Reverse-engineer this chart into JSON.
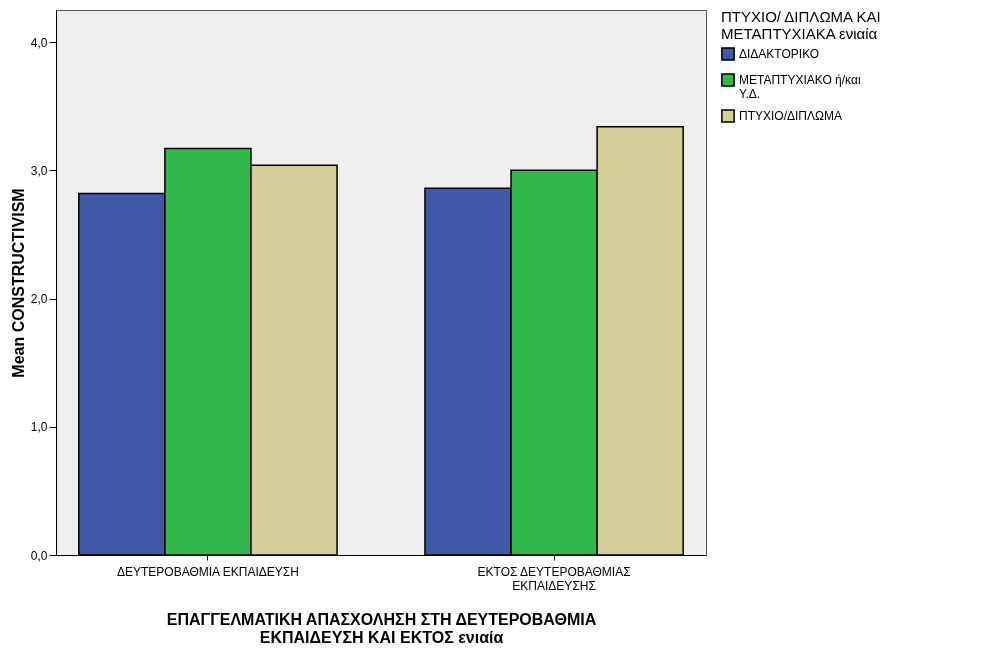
{
  "chart_data": {
    "type": "bar",
    "xlabel": "ΕΠΑΓΓΕΛΜΑΤΙΚΗ ΑΠΑΣΧΟΛΗΣΗ ΣΤΗ ΔΕΥΤΕΡΟΒΑΘΜΙΑ ΕΚΠΑΙΔΕΥΣΗ ΚΑΙ ΕΚΤΟΣ ενιαία",
    "ylabel": "Mean CONSTRUCTIVISM",
    "legend_title": "ΠΤΥΧΙΟ/ ΔΙΠΛΩΜΑ ΚΑΙ ΜΕΤΑΠΤΥΧΙΑΚΑ ενιαία",
    "categories": [
      "ΔΕΥΤΕΡΟΒΑΘΜΙΑ ΕΚΠΑΙΔΕΥΣΗ",
      "ΕΚΤΟΣ ΔΕΥΤΕΡΟΒΑΘΜΙΑΣ ΕΚΠΑΙΔΕΥΣΗΣ"
    ],
    "series": [
      {
        "name": "ΔΙΔΑΚΤΟΡΙΚΟ",
        "color": "#3f58a8",
        "values": [
          2.82,
          2.86
        ]
      },
      {
        "name": "ΜΕΤΑΠΤΥΧΙΑΚΟ ή/και Υ.Δ.",
        "color": "#30b84a",
        "values": [
          3.17,
          3.0
        ]
      },
      {
        "name": "ΠΤΥΧΙΟ/ΔΙΠΛΩΜΑ",
        "color": "#d3cf99",
        "values": [
          3.04,
          3.34
        ]
      }
    ],
    "ylim": [
      0,
      4.25
    ],
    "yticks": [
      {
        "value": 0,
        "label": "0,0"
      },
      {
        "value": 1,
        "label": "1,0"
      },
      {
        "value": 2,
        "label": "2,0"
      },
      {
        "value": 3,
        "label": "3,0"
      },
      {
        "value": 4,
        "label": "4,0"
      }
    ],
    "grid": false,
    "legend": "top right"
  }
}
